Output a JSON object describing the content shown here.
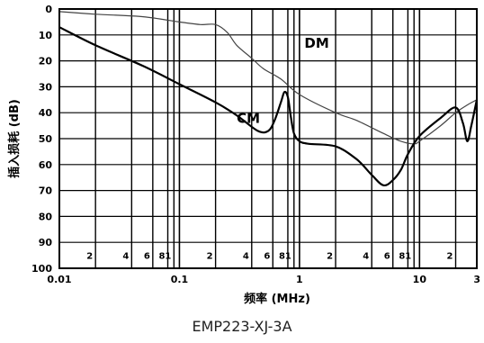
{
  "caption": "EMP223-XJ-3A",
  "chart_data": {
    "type": "line",
    "xlabel": "频率 (MHz)",
    "ylabel": "插入损耗 (dB)",
    "xscale": "log",
    "xlim": [
      0.01,
      30
    ],
    "ylim": [
      0,
      100
    ],
    "y_inverted": true,
    "grid": true,
    "yticks": [
      "0",
      "10",
      "20",
      "30",
      "40",
      "50",
      "60",
      "70",
      "80",
      "90",
      "100"
    ],
    "major_ticks": [
      {
        "value": 0.01,
        "label": "0.01"
      },
      {
        "value": 0.1,
        "label": "0.1"
      },
      {
        "value": 1,
        "label": "1"
      },
      {
        "value": 10,
        "label": "10"
      },
      {
        "value": 30,
        "label": "3"
      }
    ],
    "minor_ticks": [
      {
        "value": 0.02,
        "label": "2"
      },
      {
        "value": 0.04,
        "label": "4"
      },
      {
        "value": 0.06,
        "label": "6"
      },
      {
        "value": 0.08,
        "label": "8"
      },
      {
        "value": 0.09,
        "label": "1"
      },
      {
        "value": 0.2,
        "label": "2"
      },
      {
        "value": 0.4,
        "label": "4"
      },
      {
        "value": 0.6,
        "label": "6"
      },
      {
        "value": 0.8,
        "label": "8"
      },
      {
        "value": 0.9,
        "label": "1"
      },
      {
        "value": 2,
        "label": "2"
      },
      {
        "value": 4,
        "label": "4"
      },
      {
        "value": 6,
        "label": "6"
      },
      {
        "value": 8,
        "label": "8"
      },
      {
        "value": 9,
        "label": "1"
      },
      {
        "value": 20,
        "label": "2"
      }
    ],
    "series": [
      {
        "name": "DM",
        "color": "#444444",
        "label_at": [
          1.1,
          15
        ],
        "x": [
          0.01,
          0.02,
          0.05,
          0.1,
          0.15,
          0.2,
          0.25,
          0.3,
          0.4,
          0.5,
          0.7,
          1,
          2,
          3,
          5,
          7,
          9,
          10,
          15,
          20,
          25,
          30
        ],
        "y": [
          1,
          2,
          3,
          5,
          6,
          6,
          9,
          14,
          19,
          23,
          27,
          33,
          40,
          43,
          48,
          51,
          52,
          51,
          45,
          40,
          37,
          35
        ]
      },
      {
        "name": "CM",
        "color": "#000000",
        "label_at": [
          0.3,
          44
        ],
        "x": [
          0.01,
          0.02,
          0.05,
          0.1,
          0.2,
          0.3,
          0.45,
          0.55,
          0.62,
          0.7,
          0.75,
          0.8,
          0.85,
          0.9,
          1,
          1.2,
          2,
          3,
          4,
          5,
          6,
          7,
          8,
          10,
          15,
          20,
          23,
          25,
          27,
          30
        ],
        "y": [
          7,
          14,
          22,
          29,
          36,
          41,
          47,
          47,
          43,
          36,
          32,
          34,
          42,
          48,
          51,
          52,
          53,
          58,
          64,
          68,
          66,
          62,
          56,
          49,
          42,
          38,
          44,
          51,
          45,
          35
        ]
      }
    ]
  }
}
